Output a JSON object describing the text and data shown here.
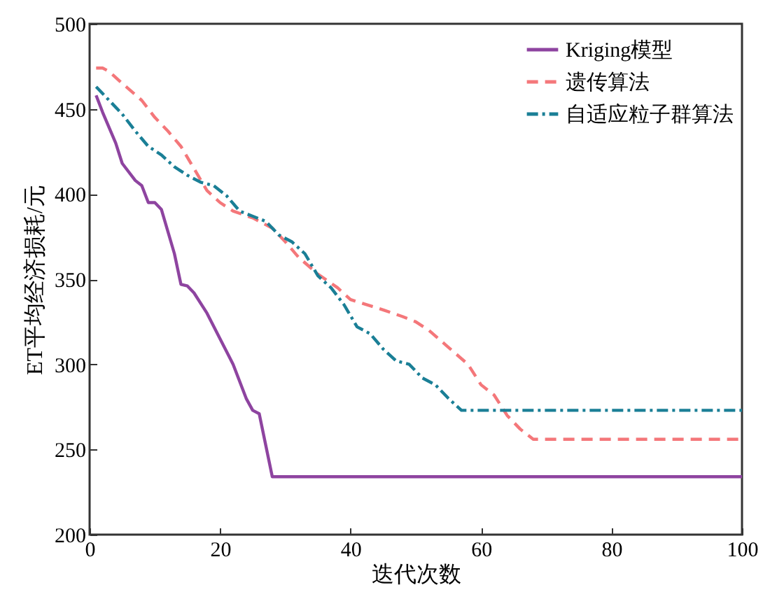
{
  "chart_data": {
    "type": "line",
    "xlabel": "迭代次数",
    "ylabel": "ET平均经济损耗/元",
    "xlim": [
      0,
      100
    ],
    "xticks": [
      0,
      20,
      40,
      60,
      80,
      100
    ],
    "ylim": [
      200,
      500
    ],
    "yticks": [
      200,
      250,
      300,
      350,
      400,
      450,
      500
    ],
    "grid": false,
    "legend": "top right",
    "marker": "none",
    "series": [
      {
        "name": "Kriging模型",
        "color": "#8e44a0",
        "line_style": "solid",
        "x": [
          1,
          2,
          4,
          5,
          7,
          8,
          9,
          10,
          11,
          13,
          14,
          15,
          16,
          18,
          20,
          22,
          24,
          25,
          26,
          28,
          40,
          60,
          80,
          100
        ],
        "values": [
          458,
          448,
          430,
          418,
          408,
          405,
          395,
          395,
          391,
          365,
          347,
          346,
          342,
          330,
          315,
          300,
          280,
          273,
          271,
          234,
          234,
          234,
          234,
          234
        ]
      },
      {
        "name": "遗传算法",
        "color": "#f4777a",
        "line_style": "dashed",
        "x": [
          1,
          2,
          3,
          5,
          8,
          10,
          12,
          14,
          16,
          18,
          20,
          22,
          25,
          28,
          30,
          32,
          35,
          38,
          40,
          45,
          48,
          50,
          52,
          55,
          58,
          60,
          62,
          64,
          66,
          68,
          80,
          100
        ],
        "values": [
          474,
          474,
          472,
          465,
          455,
          445,
          437,
          428,
          415,
          402,
          395,
          390,
          386,
          380,
          372,
          363,
          353,
          345,
          338,
          332,
          328,
          325,
          320,
          310,
          300,
          288,
          282,
          270,
          262,
          256,
          256,
          256
        ]
      },
      {
        "name": "自适应粒子群算法",
        "color": "#1a7f96",
        "line_style": "dashdot",
        "x": [
          1,
          3,
          5,
          7,
          9,
          11,
          13,
          15,
          17,
          19,
          21,
          23,
          25,
          27,
          29,
          31,
          33,
          35,
          37,
          39,
          41,
          43,
          45,
          47,
          49,
          51,
          53,
          55,
          57,
          80,
          100
        ],
        "values": [
          463,
          455,
          447,
          437,
          428,
          423,
          416,
          411,
          407,
          405,
          399,
          390,
          387,
          384,
          376,
          372,
          365,
          352,
          345,
          335,
          322,
          318,
          309,
          302,
          300,
          292,
          288,
          280,
          273,
          273,
          273
        ]
      }
    ]
  }
}
